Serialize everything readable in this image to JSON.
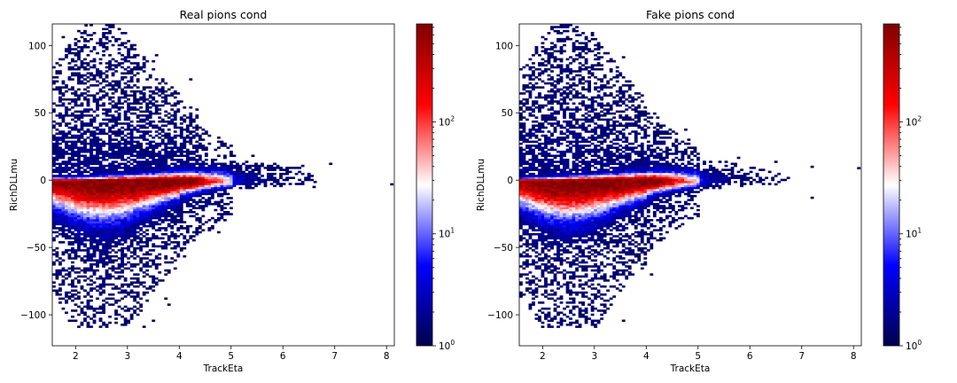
{
  "figure": {
    "panels": [
      {
        "title": "Real pions cond",
        "xlabel": "TrackEta",
        "ylabel": "RichDLLmu"
      },
      {
        "title": "Fake pions cond",
        "xlabel": "TrackEta",
        "ylabel": "RichDLLmu"
      }
    ]
  },
  "chart_data": [
    {
      "type": "heatmap",
      "title": "Real pions cond",
      "xlabel": "TrackEta",
      "ylabel": "RichDLLmu",
      "xlim": [
        1.55,
        8.15
      ],
      "ylim": [
        -123,
        116
      ],
      "xticks": [
        2,
        3,
        4,
        5,
        6,
        7,
        8
      ],
      "yticks": [
        -100,
        -50,
        0,
        50,
        100
      ],
      "colorbar": {
        "scale": "log",
        "range": [
          1,
          750
        ],
        "ticks": [
          "10^0",
          "10^1",
          "10^2"
        ],
        "colormap": "seismic"
      },
      "distribution": {
        "core": {
          "x_range": [
            1.6,
            5.05
          ],
          "y_center": -1,
          "max_count": 750
        },
        "lower_lobe": {
          "y_min": -110,
          "peak_x": 2.5
        },
        "upper_tail": {
          "y_max": 82
        },
        "outliers": [
          {
            "x": 8.1,
            "y": -3
          },
          {
            "x": 6.6,
            "y": -5
          },
          {
            "x": 2.2,
            "y": 115
          }
        ]
      }
    },
    {
      "type": "heatmap",
      "title": "Fake pions cond",
      "xlabel": "TrackEta",
      "ylabel": "RichDLLmu",
      "xlim": [
        1.55,
        8.15
      ],
      "ylim": [
        -123,
        116
      ],
      "xticks": [
        2,
        3,
        4,
        5,
        6,
        7,
        8
      ],
      "yticks": [
        -100,
        -50,
        0,
        50,
        100
      ],
      "colorbar": {
        "scale": "log",
        "range": [
          1,
          750
        ],
        "ticks": [
          "10^0",
          "10^1",
          "10^2"
        ],
        "colormap": "seismic"
      },
      "distribution": {
        "core": {
          "x_range": [
            1.6,
            5.05
          ],
          "y_center": -1,
          "max_count": 750
        },
        "lower_lobe": {
          "y_min": -110,
          "peak_x": 2.5
        },
        "upper_tail": {
          "y_max": 55
        },
        "outliers": [
          {
            "x": 8.1,
            "y": 9
          },
          {
            "x": 7.2,
            "y": 10
          },
          {
            "x": 7.2,
            "y": -13
          },
          {
            "x": 6.5,
            "y": -3
          }
        ]
      }
    }
  ]
}
